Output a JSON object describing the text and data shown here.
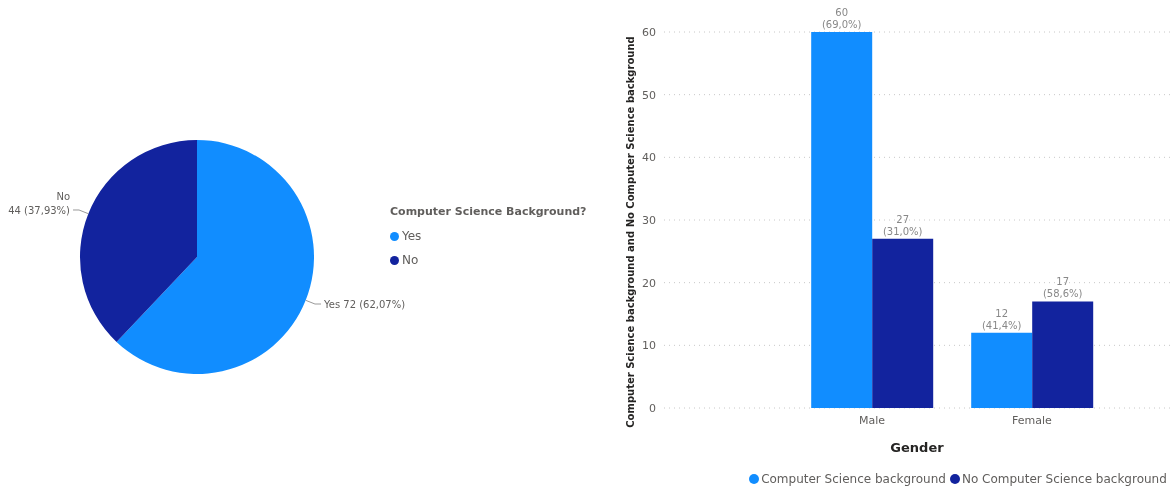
{
  "chart_data": [
    {
      "type": "pie",
      "legend_title": "Computer Science Background?",
      "categories": [
        "Yes",
        "No"
      ],
      "values": [
        72,
        44
      ],
      "colors": [
        "#118dff",
        "#12239e"
      ],
      "value_labels": [
        "Yes 72 (62,07%)",
        "No\n44 (37,93%)"
      ],
      "legend": "right"
    },
    {
      "type": "bar",
      "xlabel": "Gender",
      "ylabel": "Computer Science background and No Computer Science background",
      "categories": [
        "Male",
        "Female"
      ],
      "series": [
        {
          "name": "Computer Science background",
          "color": "#118dff",
          "values": [
            60,
            12
          ],
          "value_labels": [
            "60\n(69,0%)",
            "12\n(41,4%)"
          ]
        },
        {
          "name": "No Computer Science background",
          "color": "#12239e",
          "values": [
            27,
            17
          ],
          "value_labels": [
            "27\n(31,0%)",
            "17\n(58,6%)"
          ]
        }
      ],
      "ylim": [
        0,
        60
      ],
      "yticks": [
        0,
        10,
        20,
        30,
        40,
        50,
        60
      ],
      "grid": "y",
      "legend": "bottom"
    }
  ]
}
